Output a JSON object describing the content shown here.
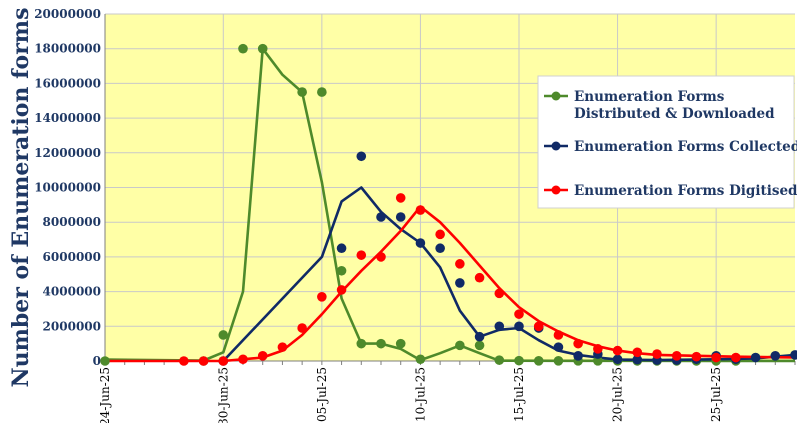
{
  "chart_data": {
    "type": "line",
    "ylabel": "Number of Enumeration forms",
    "ylim": [
      0,
      20000000
    ],
    "yticks": [
      "0",
      "2000000",
      "4000000",
      "6000000",
      "8000000",
      "10000000",
      "12000000",
      "14000000",
      "16000000",
      "18000000",
      "20000000"
    ],
    "x_start": "2025-06-24",
    "x_end": "2025-07-29",
    "xticks": [
      {
        "date": "2025-06-24",
        "label": "24-Jun-25"
      },
      {
        "date": "2025-06-30",
        "label": "30-Jun-25"
      },
      {
        "date": "2025-07-05",
        "label": "05-Jul-25"
      },
      {
        "date": "2025-07-10",
        "label": "10-Jul-25"
      },
      {
        "date": "2025-07-15",
        "label": "15-Jul-25"
      },
      {
        "date": "2025-07-20",
        "label": "20-Jul-25"
      },
      {
        "date": "2025-07-25",
        "label": "25-Jul-25"
      }
    ],
    "grid": true,
    "legend_position": "right",
    "series": [
      {
        "name": "Enumeration Forms Distributed & Downloaded",
        "color": "#4e8a2b",
        "points": [
          [
            "2025-06-24",
            0
          ],
          [
            "2025-06-29",
            0
          ],
          [
            "2025-06-30",
            1500000
          ],
          [
            "2025-07-01",
            18000000
          ],
          [
            "2025-07-02",
            18000000
          ],
          [
            "2025-07-04",
            15500000
          ],
          [
            "2025-07-05",
            15500000
          ],
          [
            "2025-07-06",
            5200000
          ],
          [
            "2025-07-07",
            1000000
          ],
          [
            "2025-07-08",
            1000000
          ],
          [
            "2025-07-09",
            1000000
          ],
          [
            "2025-07-10",
            100000
          ],
          [
            "2025-07-12",
            900000
          ],
          [
            "2025-07-13",
            900000
          ],
          [
            "2025-07-14",
            50000
          ],
          [
            "2025-07-15",
            20000
          ],
          [
            "2025-07-16",
            10000
          ],
          [
            "2025-07-17",
            10000
          ],
          [
            "2025-07-18",
            10000
          ],
          [
            "2025-07-19",
            10000
          ],
          [
            "2025-07-20",
            10000
          ],
          [
            "2025-07-21",
            5000
          ],
          [
            "2025-07-22",
            5000
          ],
          [
            "2025-07-23",
            5000
          ],
          [
            "2025-07-24",
            5000
          ],
          [
            "2025-07-25",
            5000
          ],
          [
            "2025-07-26",
            5000
          ]
        ],
        "line": [
          [
            "2025-06-24",
            80000
          ],
          [
            "2025-06-29",
            30000
          ],
          [
            "2025-06-30",
            500000
          ],
          [
            "2025-07-01",
            4000000
          ],
          [
            "2025-07-02",
            18000000
          ],
          [
            "2025-07-03",
            16500000
          ],
          [
            "2025-07-04",
            15500000
          ],
          [
            "2025-07-05",
            10300000
          ],
          [
            "2025-07-06",
            3600000
          ],
          [
            "2025-07-07",
            1000000
          ],
          [
            "2025-07-08",
            1000000
          ],
          [
            "2025-07-09",
            700000
          ],
          [
            "2025-07-10",
            50000
          ],
          [
            "2025-07-11",
            450000
          ],
          [
            "2025-07-12",
            900000
          ],
          [
            "2025-07-13",
            450000
          ],
          [
            "2025-07-14",
            20000
          ],
          [
            "2025-07-17",
            10000
          ],
          [
            "2025-07-25",
            5000
          ],
          [
            "2025-07-29",
            5000
          ]
        ]
      },
      {
        "name": "Enumeration Forms Collected",
        "color": "#102a66",
        "points": [
          [
            "2025-06-30",
            0
          ],
          [
            "2025-07-06",
            6500000
          ],
          [
            "2025-07-07",
            11800000
          ],
          [
            "2025-07-08",
            8300000
          ],
          [
            "2025-07-09",
            8300000
          ],
          [
            "2025-07-10",
            6800000
          ],
          [
            "2025-07-11",
            6500000
          ],
          [
            "2025-07-12",
            4500000
          ],
          [
            "2025-07-13",
            1400000
          ],
          [
            "2025-07-14",
            2000000
          ],
          [
            "2025-07-15",
            2000000
          ],
          [
            "2025-07-16",
            1900000
          ],
          [
            "2025-07-17",
            800000
          ],
          [
            "2025-07-18",
            300000
          ],
          [
            "2025-07-19",
            400000
          ],
          [
            "2025-07-20",
            100000
          ],
          [
            "2025-07-21",
            80000
          ],
          [
            "2025-07-22",
            50000
          ],
          [
            "2025-07-23",
            50000
          ],
          [
            "2025-07-24",
            100000
          ],
          [
            "2025-07-25",
            300000
          ],
          [
            "2025-07-26",
            100000
          ],
          [
            "2025-07-27",
            200000
          ],
          [
            "2025-07-28",
            300000
          ],
          [
            "2025-07-29",
            350000
          ]
        ],
        "line": [
          [
            "2025-06-30",
            0
          ],
          [
            "2025-07-05",
            6000000
          ],
          [
            "2025-07-06",
            9200000
          ],
          [
            "2025-07-07",
            10000000
          ],
          [
            "2025-07-08",
            8600000
          ],
          [
            "2025-07-09",
            7600000
          ],
          [
            "2025-07-10",
            6800000
          ],
          [
            "2025-07-11",
            5400000
          ],
          [
            "2025-07-12",
            2900000
          ],
          [
            "2025-07-13",
            1400000
          ],
          [
            "2025-07-14",
            1800000
          ],
          [
            "2025-07-15",
            1900000
          ],
          [
            "2025-07-16",
            1200000
          ],
          [
            "2025-07-17",
            600000
          ],
          [
            "2025-07-18",
            350000
          ],
          [
            "2025-07-19",
            200000
          ],
          [
            "2025-07-20",
            80000
          ],
          [
            "2025-07-22",
            50000
          ],
          [
            "2025-07-25",
            100000
          ],
          [
            "2025-07-27",
            150000
          ],
          [
            "2025-07-29",
            350000
          ]
        ]
      },
      {
        "name": "Enumeration Forms Digitised",
        "color": "#ff0000",
        "points": [
          [
            "2025-06-28",
            0
          ],
          [
            "2025-06-29",
            0
          ],
          [
            "2025-06-30",
            0
          ],
          [
            "2025-07-01",
            100000
          ],
          [
            "2025-07-02",
            300000
          ],
          [
            "2025-07-03",
            800000
          ],
          [
            "2025-07-04",
            1900000
          ],
          [
            "2025-07-05",
            3700000
          ],
          [
            "2025-07-06",
            4100000
          ],
          [
            "2025-07-07",
            6100000
          ],
          [
            "2025-07-08",
            6000000
          ],
          [
            "2025-07-09",
            9400000
          ],
          [
            "2025-07-10",
            8700000
          ],
          [
            "2025-07-11",
            7300000
          ],
          [
            "2025-07-12",
            5600000
          ],
          [
            "2025-07-13",
            4800000
          ],
          [
            "2025-07-14",
            3900000
          ],
          [
            "2025-07-15",
            2700000
          ],
          [
            "2025-07-16",
            2000000
          ],
          [
            "2025-07-17",
            1500000
          ],
          [
            "2025-07-18",
            1000000
          ],
          [
            "2025-07-19",
            700000
          ],
          [
            "2025-07-20",
            600000
          ],
          [
            "2025-07-21",
            500000
          ],
          [
            "2025-07-22",
            400000
          ],
          [
            "2025-07-23",
            300000
          ],
          [
            "2025-07-24",
            250000
          ],
          [
            "2025-07-25",
            200000
          ],
          [
            "2025-07-26",
            200000
          ]
        ],
        "line": [
          [
            "2025-06-24",
            0
          ],
          [
            "2025-06-30",
            0
          ],
          [
            "2025-07-02",
            200000
          ],
          [
            "2025-07-03",
            600000
          ],
          [
            "2025-07-04",
            1500000
          ],
          [
            "2025-07-05",
            2700000
          ],
          [
            "2025-07-06",
            4000000
          ],
          [
            "2025-07-07",
            5200000
          ],
          [
            "2025-07-08",
            6300000
          ],
          [
            "2025-07-09",
            7500000
          ],
          [
            "2025-07-10",
            8900000
          ],
          [
            "2025-07-11",
            8000000
          ],
          [
            "2025-07-12",
            6800000
          ],
          [
            "2025-07-13",
            5500000
          ],
          [
            "2025-07-14",
            4200000
          ],
          [
            "2025-07-15",
            3100000
          ],
          [
            "2025-07-16",
            2300000
          ],
          [
            "2025-07-17",
            1700000
          ],
          [
            "2025-07-18",
            1200000
          ],
          [
            "2025-07-19",
            850000
          ],
          [
            "2025-07-20",
            600000
          ],
          [
            "2025-07-21",
            450000
          ],
          [
            "2025-07-22",
            350000
          ],
          [
            "2025-07-24",
            300000
          ],
          [
            "2025-07-26",
            250000
          ],
          [
            "2025-07-29",
            200000
          ]
        ]
      }
    ]
  }
}
